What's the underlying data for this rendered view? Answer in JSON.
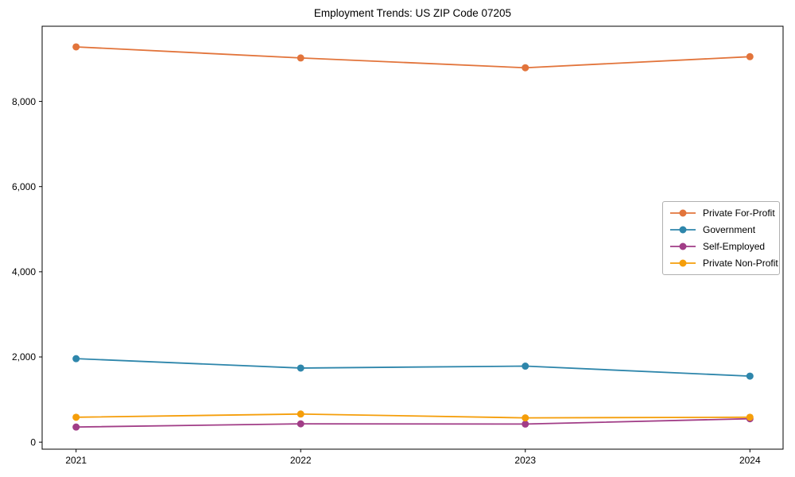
{
  "chart_data": {
    "type": "line",
    "title": "Employment Trends: US ZIP Code 07205",
    "xlabel": "",
    "ylabel": "",
    "categories": [
      "2021",
      "2022",
      "2023",
      "2024"
    ],
    "series": [
      {
        "name": "Private For-Profit",
        "color": "#E2743B",
        "values": [
          9280,
          9020,
          8790,
          9050
        ]
      },
      {
        "name": "Government",
        "color": "#2E86AB",
        "values": [
          1960,
          1740,
          1785,
          1550
        ]
      },
      {
        "name": "Self-Employed",
        "color": "#A13D87",
        "values": [
          355,
          430,
          425,
          550
        ]
      },
      {
        "name": "Private Non-Profit",
        "color": "#F59E0A",
        "values": [
          585,
          660,
          570,
          585
        ]
      }
    ],
    "y_ticks": [
      0,
      2000,
      4000,
      6000,
      8000
    ],
    "y_tick_labels": [
      "0",
      "2,000",
      "4,000",
      "6,000",
      "8,000"
    ],
    "ylim": [
      -165,
      9765
    ],
    "grid": false,
    "legend_position": "center right",
    "marker": "circle",
    "frame_color": "#000000"
  }
}
